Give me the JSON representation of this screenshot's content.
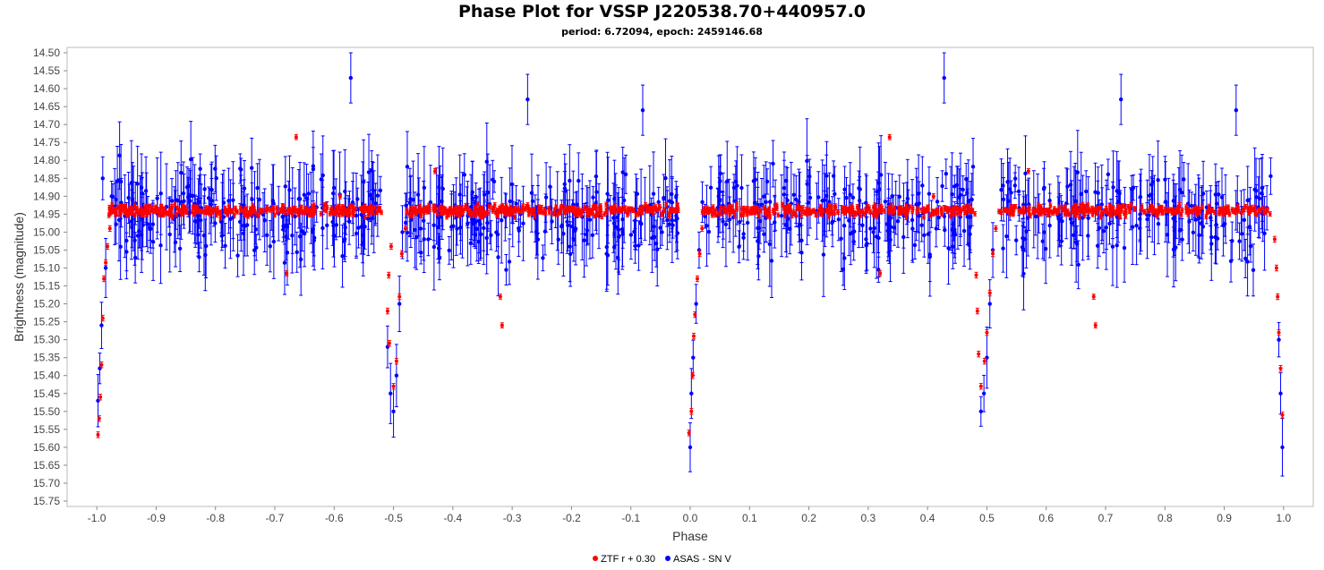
{
  "chart_data": {
    "type": "scatter",
    "title": "Phase Plot for VSSP J220538.70+440957.0",
    "subtitle": "period: 6.72094, epoch: 2459146.68",
    "xlabel": "Phase",
    "ylabel": "Brightness (magnitude)",
    "xlim": [
      -1.05,
      1.05
    ],
    "ylim": [
      15.765,
      14.485
    ],
    "y_inverted": true,
    "xticks": [
      "-1.0",
      "-0.9",
      "-0.8",
      "-0.7",
      "-0.6",
      "-0.5",
      "-0.4",
      "-0.3",
      "-0.2",
      "-0.1",
      "0.0",
      "0.1",
      "0.2",
      "0.3",
      "0.4",
      "0.5",
      "0.6",
      "0.7",
      "0.8",
      "0.9",
      "1.0"
    ],
    "yticks": [
      "14.50",
      "14.55",
      "14.60",
      "14.65",
      "14.70",
      "14.75",
      "14.80",
      "14.85",
      "14.90",
      "14.95",
      "15.00",
      "15.05",
      "15.10",
      "15.15",
      "15.20",
      "15.25",
      "15.30",
      "15.35",
      "15.40",
      "15.45",
      "15.50",
      "15.55",
      "15.60",
      "15.65",
      "15.70",
      "15.75"
    ],
    "legend_position": "bottom-center",
    "series": [
      {
        "name": "ZTF r + 0.30",
        "color": "#ff0000",
        "baseline": 14.94,
        "primary_eclipse": {
          "phase": 0.0,
          "depth_mag": 15.58
        },
        "secondary_eclipse": {
          "phase": 0.5,
          "depth_mag": 15.43
        },
        "outliers": [
          [
            -0.664,
            14.735
          ],
          [
            -0.317,
            15.26
          ],
          [
            -0.32,
            15.18
          ],
          [
            0.336,
            14.735
          ],
          [
            0.683,
            15.26
          ],
          [
            0.68,
            15.18
          ],
          [
            -0.68,
            15.115
          ],
          [
            0.32,
            15.115
          ],
          [
            -0.59,
            14.9
          ],
          [
            0.41,
            14.9
          ],
          [
            -0.43,
            14.83
          ],
          [
            0.57,
            14.83
          ]
        ],
        "points": [
          [
            -0.998,
            15.565
          ],
          [
            -0.996,
            15.52
          ],
          [
            -0.994,
            15.46
          ],
          [
            -0.992,
            15.37
          ],
          [
            -0.99,
            15.24
          ],
          [
            -0.988,
            15.13
          ],
          [
            -0.985,
            15.085
          ],
          [
            -0.982,
            15.04
          ],
          [
            -0.978,
            14.99
          ],
          [
            -0.504,
            15.04
          ],
          [
            -0.508,
            15.12
          ],
          [
            -0.51,
            15.22
          ],
          [
            -0.507,
            15.31
          ],
          [
            -0.5,
            15.43
          ],
          [
            -0.495,
            15.36
          ],
          [
            -0.49,
            15.18
          ],
          [
            -0.486,
            15.06
          ],
          [
            -0.48,
            14.99
          ],
          [
            -0.002,
            15.56
          ],
          [
            0.002,
            15.5
          ],
          [
            0.004,
            15.4
          ],
          [
            0.006,
            15.29
          ],
          [
            0.008,
            15.23
          ],
          [
            0.012,
            15.13
          ],
          [
            0.016,
            15.06
          ],
          [
            0.02,
            14.99
          ],
          [
            0.49,
            15.43
          ],
          [
            0.486,
            15.34
          ],
          [
            0.484,
            15.22
          ],
          [
            0.482,
            15.12
          ],
          [
            0.496,
            15.36
          ],
          [
            0.5,
            15.28
          ],
          [
            0.505,
            15.17
          ],
          [
            0.51,
            15.06
          ],
          [
            0.515,
            14.99
          ],
          [
            0.985,
            15.02
          ],
          [
            0.988,
            15.1
          ],
          [
            0.99,
            15.18
          ],
          [
            0.992,
            15.28
          ],
          [
            0.995,
            15.38
          ],
          [
            0.998,
            15.51
          ]
        ]
      },
      {
        "name": "ASAS - SN V",
        "color": "#0000ff",
        "baseline": 14.95,
        "primary_eclipse": {
          "phase": 0.0,
          "depth_mag": 15.6
        },
        "secondary_eclipse": {
          "phase": 0.5,
          "depth_mag": 15.5
        },
        "outliers": [
          [
            -0.572,
            14.57
          ],
          [
            0.428,
            14.57
          ],
          [
            -0.274,
            14.63
          ],
          [
            0.726,
            14.63
          ],
          [
            -0.08,
            14.66
          ],
          [
            0.92,
            14.66
          ]
        ],
        "points": [
          [
            -0.998,
            15.47
          ],
          [
            -0.995,
            15.38
          ],
          [
            -0.992,
            15.26
          ],
          [
            -0.99,
            14.85
          ],
          [
            -0.985,
            15.1
          ],
          [
            -0.975,
            14.9
          ],
          [
            -0.51,
            15.32
          ],
          [
            -0.505,
            15.45
          ],
          [
            -0.5,
            15.5
          ],
          [
            -0.495,
            15.4
          ],
          [
            -0.49,
            15.2
          ],
          [
            -0.485,
            15.0
          ],
          [
            0.0,
            15.6
          ],
          [
            0.002,
            15.45
          ],
          [
            0.005,
            15.35
          ],
          [
            0.01,
            15.2
          ],
          [
            0.015,
            15.05
          ],
          [
            0.49,
            15.5
          ],
          [
            0.495,
            15.45
          ],
          [
            0.5,
            15.35
          ],
          [
            0.505,
            15.2
          ],
          [
            0.51,
            15.05
          ],
          [
            0.998,
            15.6
          ],
          [
            0.995,
            15.45
          ],
          [
            0.992,
            15.3
          ]
        ]
      }
    ]
  }
}
